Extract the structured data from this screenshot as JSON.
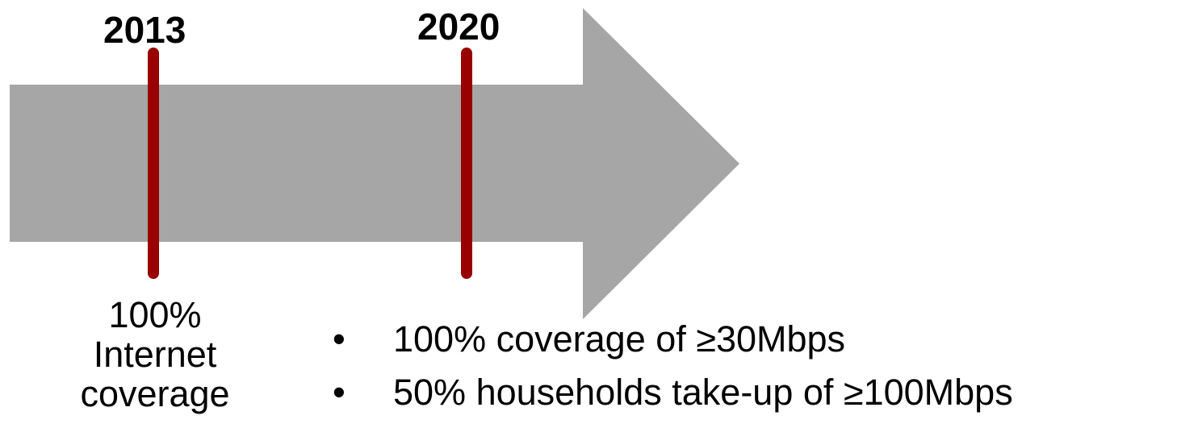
{
  "colors": {
    "arrow": "#a6a6a6",
    "marker": "#990000",
    "text": "#000000",
    "background": "#ffffff"
  },
  "milestones": [
    {
      "year": "2013",
      "note_lines": [
        "100%",
        "Internet",
        "coverage"
      ]
    },
    {
      "year": "2020",
      "goals": [
        "100% coverage of ≥30Mbps",
        "50% households take-up of ≥100Mbps"
      ]
    }
  ],
  "bullet_symbol": "•"
}
